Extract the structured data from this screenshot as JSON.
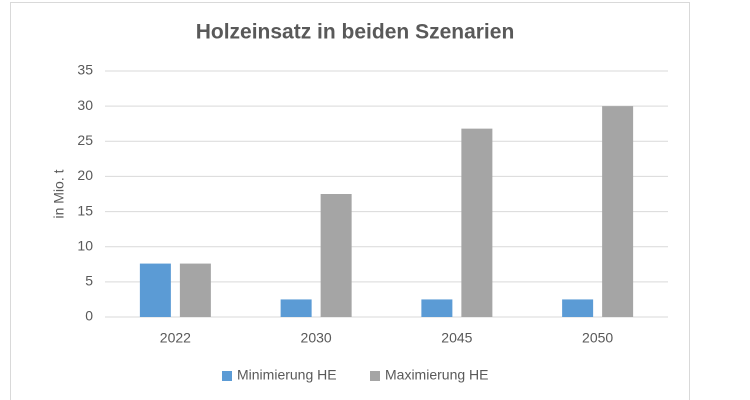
{
  "chart_data": {
    "type": "bar",
    "title": "Holzeinsatz in beiden Szenarien",
    "y_label": "in Mio. t",
    "categories": [
      "2022",
      "2030",
      "2045",
      "2050"
    ],
    "series": [
      {
        "name": "Minimierung HE",
        "color": "#5b9bd5",
        "values": [
          7.6,
          2.5,
          2.5,
          2.5
        ]
      },
      {
        "name": "Maximierung HE",
        "color": "#a5a5a5",
        "values": [
          7.6,
          17.5,
          26.8,
          30
        ]
      }
    ],
    "ylim": [
      0,
      35
    ],
    "yticks": [
      0,
      5,
      10,
      15,
      20,
      25,
      30,
      35
    ],
    "grid": true,
    "legend": "bottom"
  }
}
